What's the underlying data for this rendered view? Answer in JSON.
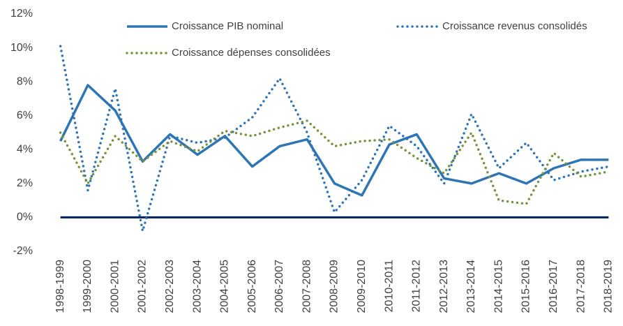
{
  "chart_data": {
    "type": "line",
    "categories": [
      "1998-1999",
      "1999-2000",
      "2000-2001",
      "2001-2002",
      "2002-2003",
      "2003-2004",
      "2004-2005",
      "2005-2006",
      "2006-2007",
      "2007-2008",
      "2008-2009",
      "2009-2010",
      "2010-2011",
      "2011-2012",
      "2012-2013",
      "2013-2014",
      "2014-2015",
      "2015-2016",
      "2016-2017",
      "2017-2018",
      "2018-2019"
    ],
    "series": [
      {
        "name": "Croissance PIB nominal",
        "color": "#2e75b6",
        "style": "solid",
        "values": [
          4.5,
          7.8,
          6.3,
          3.3,
          4.9,
          3.7,
          4.8,
          3.0,
          4.2,
          4.6,
          2.0,
          1.3,
          4.3,
          4.9,
          2.3,
          2.0,
          2.6,
          2.0,
          2.9,
          3.4,
          3.4
        ]
      },
      {
        "name": "Croissance revenus consolidés",
        "color": "#2e75b6",
        "style": "dotted",
        "values": [
          10.1,
          1.6,
          7.6,
          -0.8,
          4.8,
          4.4,
          4.7,
          5.9,
          8.2,
          5.0,
          0.3,
          2.2,
          5.4,
          4.2,
          2.0,
          6.1,
          2.9,
          4.4,
          2.2,
          2.7,
          3.0
        ]
      },
      {
        "name": "Croissance dépenses consolidées",
        "color": "#77933c",
        "style": "dotted",
        "values": [
          5.0,
          2.0,
          4.8,
          3.3,
          4.5,
          3.9,
          5.1,
          4.8,
          5.3,
          5.7,
          4.2,
          4.5,
          4.6,
          3.5,
          2.6,
          5.0,
          1.0,
          0.8,
          3.8,
          2.4,
          2.7
        ]
      }
    ],
    "ylim": [
      -2,
      12
    ],
    "yticks": [
      {
        "value": -2,
        "label": "-2%"
      },
      {
        "value": 0,
        "label": "0%"
      },
      {
        "value": 2,
        "label": "2%"
      },
      {
        "value": 4,
        "label": "4%"
      },
      {
        "value": 6,
        "label": "6%"
      },
      {
        "value": 8,
        "label": "8%"
      },
      {
        "value": 10,
        "label": "10%"
      },
      {
        "value": 12,
        "label": "12%"
      }
    ],
    "zero_line": {
      "value": 0,
      "color": "#002060"
    },
    "grid": false
  }
}
